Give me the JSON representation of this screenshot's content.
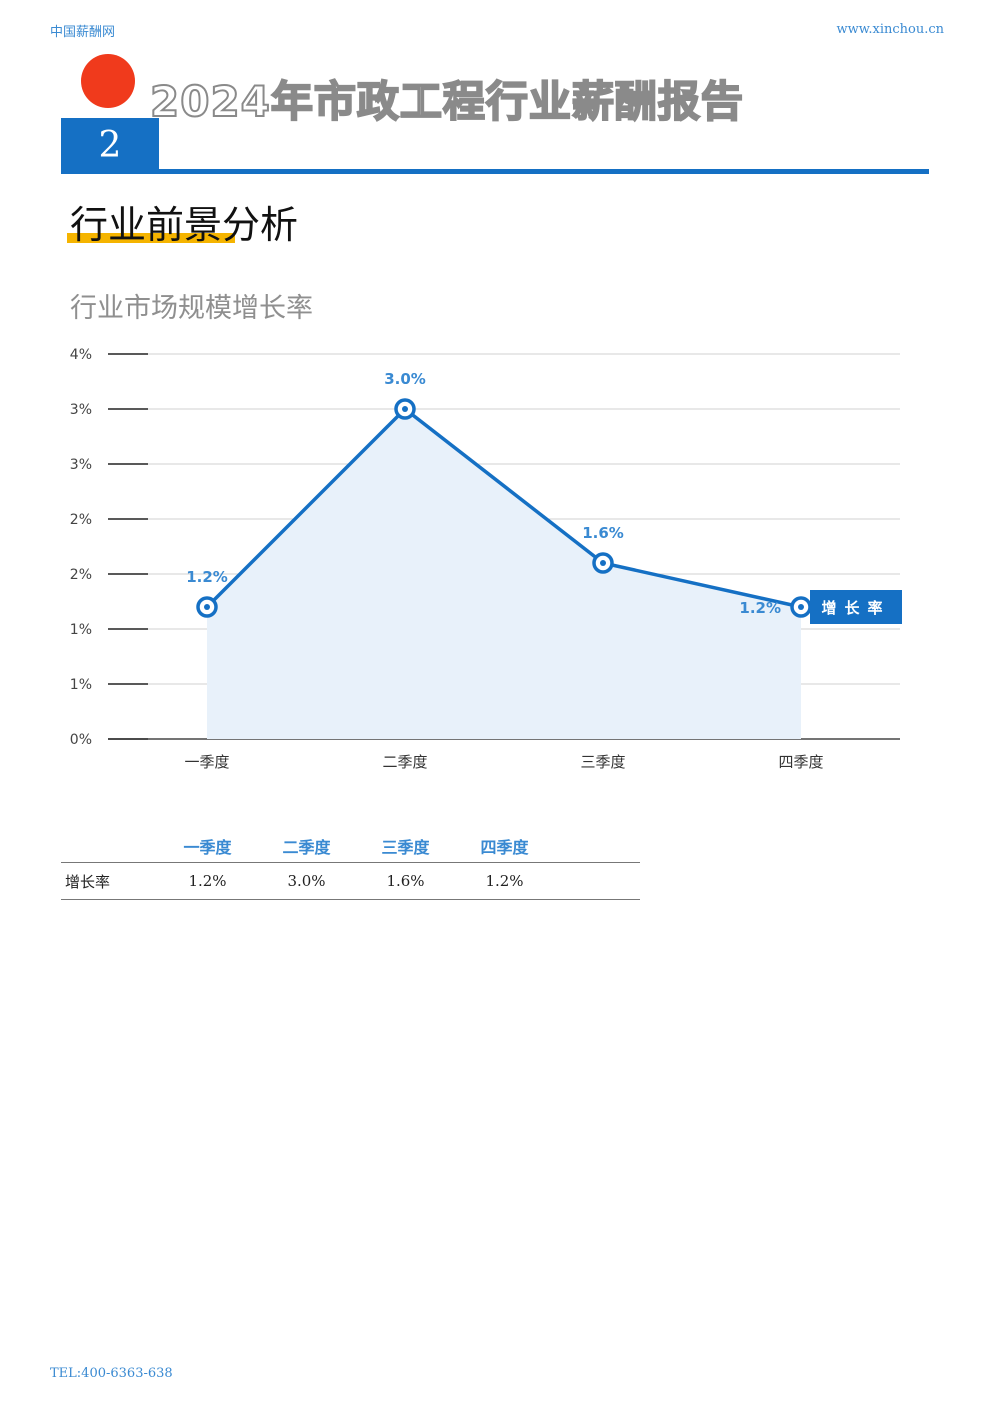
{
  "header": {
    "site_name": "中国薪酬网",
    "site_url": "www.xinchou.cn",
    "report_title": "2024年市政工程行业薪酬报告",
    "chapter_number": "2",
    "section_title": "行业前景分析"
  },
  "colors": {
    "accent": "#1570c4",
    "dot": "#f03a1c",
    "underline": "#f5b400",
    "area": "#e8f1fa"
  },
  "chart_data": {
    "type": "line",
    "title": "行业市场规模增长率",
    "categories": [
      "一季度",
      "二季度",
      "三季度",
      "四季度"
    ],
    "series": [
      {
        "name": "增长率",
        "values": [
          1.2,
          3.0,
          1.6,
          1.2
        ],
        "labels": [
          "1.2%",
          "3.0%",
          "1.6%",
          "1.2%"
        ]
      }
    ],
    "y_tick_labels": [
      "0%",
      "1%",
      "1%",
      "2%",
      "2%",
      "3%",
      "3%",
      "4%"
    ],
    "ylim": [
      0,
      3.5
    ],
    "grid": true,
    "legend": "right, inline at last point",
    "area_fill": true
  },
  "table": {
    "headers": [
      "",
      "一季度",
      "二季度",
      "三季度",
      "四季度",
      ""
    ],
    "rows": [
      {
        "label": "增长率",
        "cells": [
          "1.2%",
          "3.0%",
          "1.6%",
          "1.2%",
          ""
        ]
      }
    ]
  },
  "footer": {
    "tel": "TEL:400-6363-638"
  }
}
